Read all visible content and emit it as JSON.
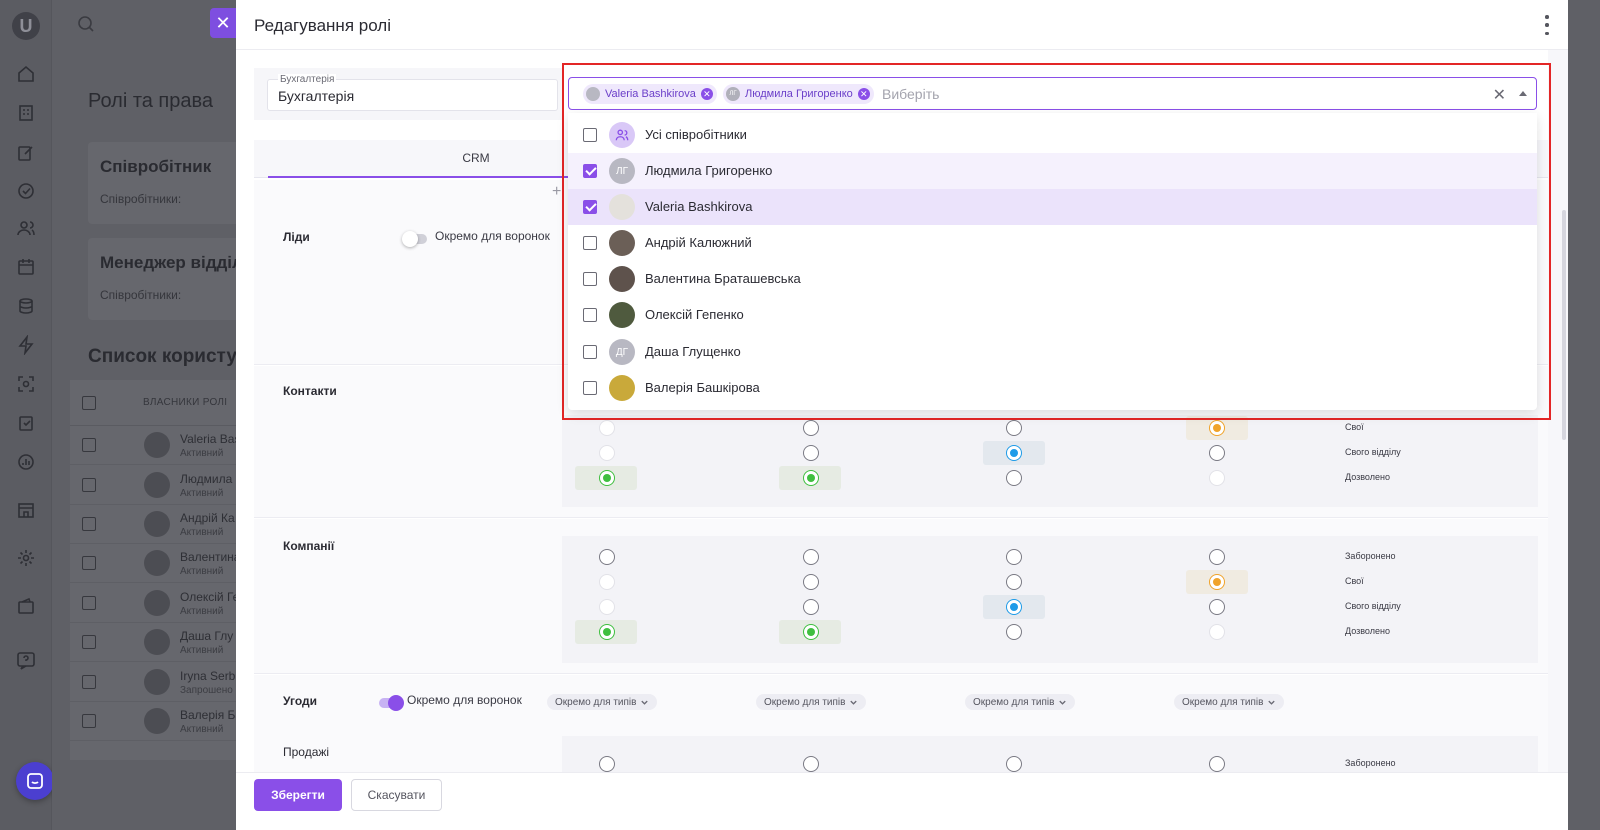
{
  "app": {
    "logo": "U",
    "page_title": "Ролі та права",
    "role_cards": [
      {
        "title": "Співробітник",
        "sub": "Співробітники:"
      },
      {
        "title": "Менеджер відділ",
        "sub": "Співробітники:"
      }
    ],
    "users_title": "Список користу",
    "users_table_header": "ВЛАСНИКИ РОЛІ",
    "users": [
      {
        "name": "Valeria Bas",
        "status": "Активний"
      },
      {
        "name": "Людмила",
        "status": "Активний"
      },
      {
        "name": "Андрій Ка",
        "status": "Активний"
      },
      {
        "name": "Валентина",
        "status": "Активний"
      },
      {
        "name": "Олексій Ге",
        "status": "Активний"
      },
      {
        "name": "Даша Глу",
        "status": "Активний"
      },
      {
        "name": "Iryna Serb",
        "status": "Запрошено"
      },
      {
        "name": "Валерія Ба",
        "status": "Активний"
      }
    ]
  },
  "modal": {
    "title": "Редагування ролі",
    "name_field": {
      "label": "Бухгалтерія",
      "value": "Бухгалтерія"
    },
    "tab": "CRM",
    "sections": {
      "leads": {
        "label": "Ліди",
        "toggle_label": "Окремо для воронок",
        "toggle_on": false
      },
      "contacts": {
        "label": "Контакти"
      },
      "companies": {
        "label": "Компанії"
      },
      "deals": {
        "label": "Угоди",
        "toggle_label": "Окремо для воронок",
        "toggle_on": true,
        "type_pill": "Окремо для типів",
        "sub_label": "Продажі"
      }
    },
    "levels": {
      "forbidden": "Заборонено",
      "own": "Свої",
      "own_department": "Свого відділу",
      "allowed": "Дозволено"
    },
    "save_label": "Зберегти",
    "cancel_label": "Скасувати"
  },
  "select": {
    "placeholder": "Виберіть",
    "chips": [
      {
        "name": "Valeria Bashkirova",
        "initials": ""
      },
      {
        "name": "Людмила Григоренко",
        "initials": "ЛГ"
      }
    ],
    "options": [
      {
        "name": "Усі співробітники",
        "checked": false,
        "avatar": "group-icon"
      },
      {
        "name": "Людмила Григоренко",
        "checked": true,
        "initials": "ЛГ"
      },
      {
        "name": "Valeria Bashkirova",
        "checked": true
      },
      {
        "name": "Андрій Калюжний",
        "checked": false
      },
      {
        "name": "Валентина Браташевська",
        "checked": false
      },
      {
        "name": "Олексій Гепенко",
        "checked": false
      },
      {
        "name": "Даша Глущенко",
        "checked": false,
        "initials": "ДГ"
      },
      {
        "name": "Валерія Башкірова",
        "checked": false
      }
    ]
  },
  "colors": {
    "accent": "#8a4fe8",
    "highlight_frame": "#e32626",
    "allowed_green": "#3fbf3f",
    "own_orange": "#f0a32a",
    "department_blue": "#1e9be8"
  }
}
